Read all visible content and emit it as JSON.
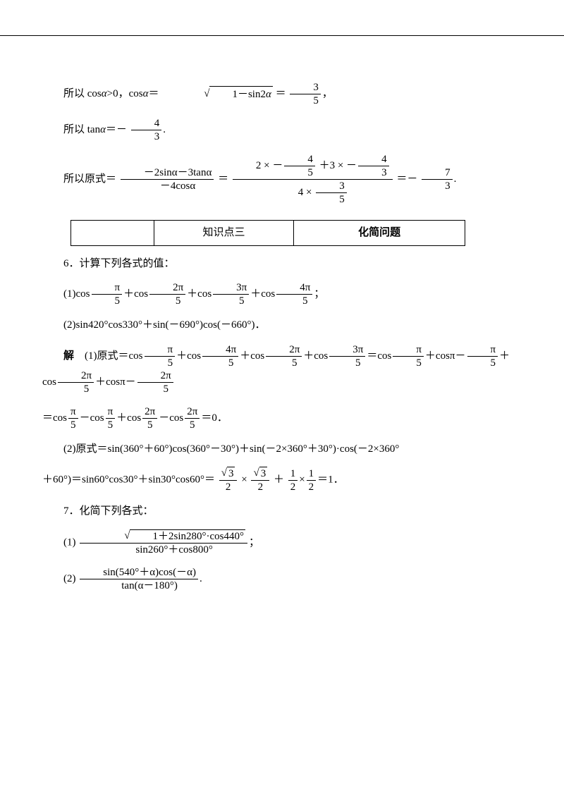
{
  "line1_prefix": "所以 cos",
  "alpha": "α",
  "gt0": ">0，cos",
  "eq": "＝",
  "sqrt_label": "1－sin2",
  "frac_3_5_num": "3",
  "frac_3_5_den": "5",
  "comma": "，",
  "line2_prefix": "所以 tan",
  "eq2": "＝－",
  "frac_4_3_num": "4",
  "frac_4_3_den": "3",
  "period": ".",
  "line3_prefix": "所以原式＝",
  "big_num": "－2sinα－3tanα",
  "big_den": "－4cosα",
  "big_eq": "＝",
  "calc_num_a": "2 ×",
  "calc_num_b": "－",
  "calc_num_c": "＋3 ×",
  "calc_den_a": "4 ×",
  "frac_4_5_num": "4",
  "frac_4_5_den": "5",
  "frac_3_5b_num": "3",
  "frac_3_5b_den": "5",
  "result_eq": "＝－",
  "frac_7_3_num": "7",
  "frac_7_3_den": "3",
  "kpt_col2": "知识点三",
  "kpt_col3": "化简问题",
  "q6": "6．计算下列各式的值：",
  "q6_1_prefix": "(1)cos",
  "pi": "π",
  "five": "5",
  "plus_cos": "＋cos",
  "twopi": "2π",
  "threepi": "3π",
  "fourpi": "4π",
  "semicolon": "；",
  "q6_2": "(2)sin420°cos330°＋sin(－690°)cos(－660°)．",
  "sol_label": "解",
  "sol1_prefix": "(1)原式＝cos",
  "midplus": "＋cos",
  "eq_cos": "＝cos",
  "cospi_minus": "＋cosπ－",
  "minus_cos": "－cos",
  "eq0": "＝0．",
  "sol2_line1": "(2)原式＝sin(360°＋60°)cos(360°－30°)＋sin(－2×360°＋30°)·cos(－2×360°",
  "sol2_line2a": "＋60°)＝sin60°cos30°＋sin30°cos60°＝",
  "sqrt3": "3",
  "two": "2",
  "times": "×",
  "plus": "＋",
  "one": "1",
  "eq1": "＝1．",
  "q7": "7．化简下列各式：",
  "q7_1_prefix": "(1)",
  "q7_1_num_sqrt": "1＋2sin280°·cos440°",
  "q7_1_den": "sin260°＋cos800°",
  "q7_2_prefix": "(2)",
  "q7_2_num": "sin(540°＋α)cos(－α)",
  "q7_2_den": "tan(α－180°)"
}
